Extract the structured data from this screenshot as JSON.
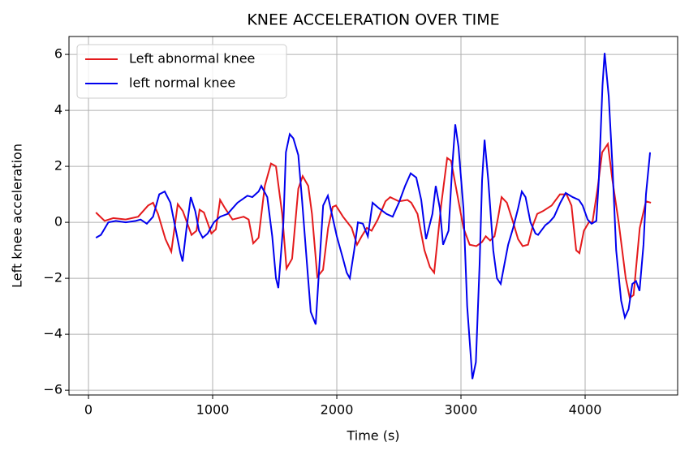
{
  "chart_data": {
    "type": "line",
    "title": "KNEE ACCELERATION OVER TIME",
    "x_label": "Time (s)",
    "y_label": "Left knee acceleration",
    "xlim": [
      -157,
      4745
    ],
    "ylim": [
      -6.17,
      6.64
    ],
    "xticks": [
      0,
      1000,
      2000,
      3000,
      4000
    ],
    "yticks": [
      {
        "value": -6,
        "label": "−6"
      },
      {
        "value": -4,
        "label": "−4"
      },
      {
        "value": -2,
        "label": "−2"
      },
      0,
      2,
      4,
      6
    ],
    "grid": true,
    "legend": "upper left",
    "series": [
      {
        "name": "Left abnormal knee",
        "color": "#e41a1c",
        "x": [
          60,
          130,
          200,
          300,
          400,
          480,
          520,
          560,
          620,
          667,
          719,
          760,
          830,
          870,
          895,
          930,
          990,
          1026,
          1060,
          1100,
          1160,
          1250,
          1290,
          1327,
          1370,
          1420,
          1470,
          1510,
          1560,
          1595,
          1640,
          1690,
          1725,
          1770,
          1800,
          1843,
          1889,
          1930,
          1967,
          1993,
          2050,
          2120,
          2163,
          2200,
          2242,
          2280,
          2330,
          2392,
          2430,
          2500,
          2569,
          2600,
          2650,
          2706,
          2750,
          2784,
          2840,
          2889,
          2920,
          2970,
          3020,
          3070,
          3124,
          3170,
          3200,
          3235,
          3270,
          3300,
          3327,
          3370,
          3420,
          3460,
          3497,
          3540,
          3580,
          3614,
          3660,
          3730,
          3797,
          3850,
          3890,
          3928,
          3954,
          3990,
          4030,
          4059,
          4100,
          4137,
          4183,
          4220,
          4270,
          4327,
          4359,
          4390,
          4440,
          4490,
          4530
        ],
        "values": [
          0.35,
          0.05,
          0.15,
          0.1,
          0.2,
          0.6,
          0.7,
          0.3,
          -0.6,
          -1.05,
          0.65,
          0.4,
          -0.45,
          -0.3,
          0.45,
          0.35,
          -0.4,
          -0.25,
          0.8,
          0.5,
          0.1,
          0.2,
          0.1,
          -0.75,
          -0.55,
          1.3,
          2.1,
          2.0,
          0.3,
          -1.65,
          -1.3,
          1.2,
          1.65,
          1.3,
          0.3,
          -1.95,
          -1.7,
          -0.2,
          0.55,
          0.6,
          0.2,
          -0.2,
          -0.8,
          -0.5,
          -0.2,
          -0.3,
          0.1,
          0.75,
          0.9,
          0.75,
          0.8,
          0.7,
          0.3,
          -1.0,
          -1.6,
          -1.8,
          0.6,
          2.3,
          2.2,
          1.0,
          -0.2,
          -0.8,
          -0.85,
          -0.7,
          -0.5,
          -0.65,
          -0.5,
          0.2,
          0.9,
          0.7,
          0.0,
          -0.6,
          -0.85,
          -0.8,
          -0.1,
          0.3,
          0.4,
          0.6,
          1.0,
          1.0,
          0.6,
          -1.0,
          -1.1,
          -0.3,
          0.0,
          0.0,
          1.2,
          2.5,
          2.8,
          1.5,
          0.0,
          -2.0,
          -2.7,
          -2.6,
          -0.2,
          0.75,
          0.7
        ]
      },
      {
        "name": "left normal knee",
        "color": "#0000ee",
        "x": [
          60,
          100,
          160,
          220,
          300,
          380,
          420,
          470,
          520,
          570,
          614,
          660,
          700,
          740,
          758,
          790,
          824,
          860,
          890,
          920,
          960,
          1010,
          1060,
          1120,
          1200,
          1280,
          1320,
          1370,
          1392,
          1440,
          1480,
          1510,
          1529,
          1570,
          1590,
          1621,
          1650,
          1690,
          1720,
          1760,
          1790,
          1830,
          1860,
          1890,
          1928,
          1960,
          2000,
          2050,
          2080,
          2105,
          2140,
          2170,
          2210,
          2250,
          2288,
          2340,
          2400,
          2450,
          2500,
          2550,
          2595,
          2640,
          2680,
          2710,
          2719,
          2770,
          2797,
          2830,
          2856,
          2900,
          2930,
          2954,
          2980,
          3020,
          3050,
          3092,
          3120,
          3150,
          3170,
          3190,
          3220,
          3260,
          3290,
          3320,
          3350,
          3380,
          3420,
          3460,
          3490,
          3520,
          3560,
          3600,
          3621,
          3680,
          3710,
          3750,
          3800,
          3843,
          3900,
          3950,
          3980,
          4020,
          4052,
          4090,
          4110,
          4140,
          4157,
          4190,
          4220,
          4250,
          4290,
          4320,
          4350,
          4380,
          4410,
          4438,
          4470,
          4490,
          4523
        ],
        "values": [
          -0.55,
          -0.45,
          0.0,
          0.05,
          0.0,
          0.05,
          0.1,
          -0.05,
          0.2,
          1.0,
          1.1,
          0.7,
          -0.2,
          -1.1,
          -1.4,
          -0.2,
          0.9,
          0.4,
          -0.3,
          -0.55,
          -0.4,
          0.0,
          0.2,
          0.3,
          0.7,
          0.95,
          0.9,
          1.1,
          1.3,
          0.9,
          -0.5,
          -2.0,
          -2.35,
          0.0,
          2.5,
          3.15,
          3.0,
          2.4,
          0.8,
          -1.5,
          -3.2,
          -3.65,
          -1.5,
          0.6,
          0.95,
          0.3,
          -0.5,
          -1.3,
          -1.8,
          -2.0,
          -1.0,
          0.0,
          -0.05,
          -0.5,
          0.7,
          0.5,
          0.3,
          0.2,
          0.7,
          1.3,
          1.75,
          1.6,
          0.8,
          -0.3,
          -0.6,
          0.3,
          1.3,
          0.5,
          -0.8,
          -0.3,
          2.0,
          3.5,
          2.7,
          0.5,
          -3.0,
          -5.6,
          -5.0,
          -1.5,
          1.5,
          2.95,
          1.5,
          -1.0,
          -2.0,
          -2.2,
          -1.5,
          -0.8,
          -0.2,
          0.5,
          1.1,
          0.9,
          0.0,
          -0.4,
          -0.45,
          -0.1,
          0.0,
          0.2,
          0.7,
          1.05,
          0.9,
          0.8,
          0.6,
          0.1,
          -0.05,
          0.05,
          1.5,
          4.9,
          6.05,
          4.5,
          2.0,
          -1.0,
          -2.8,
          -3.4,
          -3.1,
          -2.2,
          -2.1,
          -2.45,
          -0.8,
          1.0,
          2.5
        ]
      }
    ]
  }
}
